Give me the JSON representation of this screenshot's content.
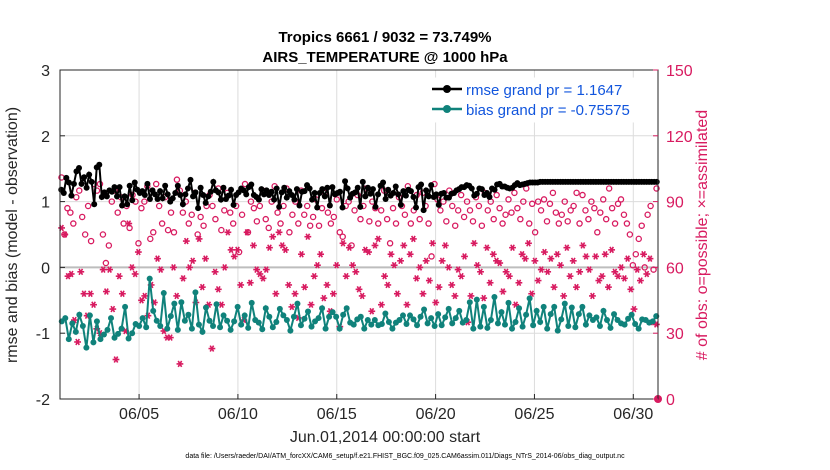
{
  "chart_data": {
    "type": "line",
    "title": "Tropics 6661 / 9032 = 73.749%",
    "subtitle": "AIRS_TEMPERATURE @ 1000 hPa",
    "xlabel": "Jun.01,2014 00:00:00 start",
    "ylabel_left": "rmse and bias (model - observation)",
    "ylabel_right": "# of obs: o=possible; ×=assimilated",
    "ylim_left": [
      -2,
      3
    ],
    "ylim_right": [
      0,
      150
    ],
    "xlim_days": [
      1.0,
      31.25
    ],
    "yticks_left": [
      "-2",
      "-1",
      "0",
      "1",
      "2",
      "3"
    ],
    "yticks_right": [
      "0",
      "30",
      "60",
      "90",
      "120",
      "150"
    ],
    "xticks": [
      {
        "day": 5,
        "label": "06/05"
      },
      {
        "day": 10,
        "label": "06/10"
      },
      {
        "day": 15,
        "label": "06/15"
      },
      {
        "day": 20,
        "label": "06/20"
      },
      {
        "day": 25,
        "label": "06/25"
      },
      {
        "day": 30,
        "label": "06/30"
      }
    ],
    "grid": true,
    "legend_position": "top-right",
    "series": [
      {
        "name": "rmse grand pr = 1.1647",
        "axis": "left",
        "color": "#000000",
        "values": [
          1.18,
          1.13,
          1.36,
          1.29,
          1.09,
          1.27,
          1.46,
          1.51,
          1.27,
          1.37,
          1.21,
          1.41,
          1.3,
          0.96,
          1.52,
          1.56,
          1.07,
          1.14,
          1.08,
          1.17,
          1.15,
          1.22,
          1.08,
          1.22,
          0.94,
          1.08,
          0.96,
          1.24,
          1.02,
          1.29,
          1.18,
          1.13,
          1.16,
          1.1,
          1.27,
          1.04,
          1.17,
          1.11,
          1.04,
          1.16,
          1.05,
          1.24,
          1.11,
          1.0,
          1.05,
          1.13,
          1.24,
          1.1,
          0.96,
          1.11,
          1.2,
          1.33,
          1.08,
          1.14,
          0.9,
          1.21,
          1.1,
          0.98,
          1.08,
          1.15,
          1.3,
          1.17,
          1.14,
          1.03,
          1.21,
          1.04,
          1.09,
          1.18,
          0.95,
          1.1,
          1.14,
          1.2,
          1.17,
          1.11,
          1.22,
          1.26,
          1.1,
          1.07,
          1.03,
          1.19,
          1.11,
          1.17,
          1.1,
          1.15,
          1.03,
          1.2,
          0.92,
          1.14,
          1.21,
          1.06,
          1.16,
          1.1,
          1.03,
          1.19,
          0.94,
          1.15,
          1.16,
          1.25,
          1.2,
          1.03,
          1.13,
          0.91,
          1.13,
          1.19,
          1.08,
          1.21,
          0.94,
          1.22,
          1.11,
          1.13,
          1.15,
          0.91,
          1.31,
          1.2,
          1.06,
          1.12,
          1.14,
          1.21,
          0.92,
          1.3,
          1.08,
          1.21,
          1.12,
          1.19,
          0.92,
          1.11,
          1.24,
          1.29,
          1.04,
          1.18,
          1.09,
          1.13,
          1.23,
          1.11,
          0.95,
          1.16,
          1.09,
          1.18,
          1.16,
          1.07,
          0.91,
          1.22,
          1.26,
          0.87,
          1.17,
          1.08,
          1.25,
          1.07,
          1.11,
          0.95,
          1.12,
          1.13,
          1.06,
          1.06,
          1.12,
          1.13,
          1.17,
          1.19,
          1.22,
          1.22,
          1.25,
          1.24,
          1.2,
          1.09,
          1.12,
          1.2,
          1.19,
          1.1,
          1.13,
          1.07,
          1.2,
          1.18,
          1.26,
          1.27,
          1.23,
          1.23,
          1.21,
          1.2,
          1.21,
          1.25,
          1.28,
          1.25,
          1.26,
          1.27,
          1.28,
          1.29,
          1.29,
          1.29,
          1.29,
          1.3,
          1.3,
          1.3,
          1.3,
          1.3,
          1.3,
          1.3,
          1.3,
          1.3,
          1.3,
          1.3,
          1.3,
          1.3,
          1.3,
          1.3,
          1.3,
          1.3,
          1.3,
          1.3,
          1.3,
          1.3,
          1.3,
          1.3,
          1.3,
          1.3,
          1.3,
          1.3,
          1.3,
          1.3,
          1.3,
          1.3,
          1.3,
          1.3,
          1.3,
          1.3,
          1.3,
          1.3,
          1.3,
          1.3,
          1.3,
          1.3,
          1.3,
          1.3,
          1.3,
          1.3,
          1.3,
          1.3
        ]
      },
      {
        "name": "bias grand pr = -0.75575",
        "axis": "left",
        "color": "#10827b",
        "values": [
          -0.82,
          -0.77,
          -1.09,
          -0.85,
          -0.98,
          -0.72,
          -0.89,
          -1.22,
          -0.73,
          -1.14,
          -0.82,
          -1.09,
          -1.02,
          -0.95,
          -0.77,
          -1.07,
          -1.01,
          -0.93,
          -0.6,
          -1.08,
          -1.0,
          -0.86,
          -0.89,
          -0.77,
          -0.91,
          -0.17,
          -0.66,
          -0.81,
          -0.89,
          -0.39,
          -0.93,
          -0.74,
          -0.55,
          -0.95,
          -0.53,
          -0.81,
          -0.72,
          -0.93,
          -0.38,
          -0.87,
          -0.98,
          -0.61,
          -0.81,
          -0.89,
          -0.56,
          -0.91,
          -0.73,
          -0.81,
          -0.95,
          -0.82,
          -0.6,
          -0.87,
          -0.73,
          -0.92,
          -0.54,
          -0.8,
          -0.84,
          -0.94,
          -0.62,
          -0.75,
          -0.91,
          -0.83,
          -0.63,
          -0.73,
          -0.8,
          -0.96,
          -0.75,
          -0.55,
          -0.88,
          -0.78,
          -0.67,
          -0.9,
          -0.82,
          -0.77,
          -0.62,
          -0.93,
          -0.75,
          -0.68,
          -0.75,
          -0.93,
          -0.72,
          -0.62,
          -0.84,
          -0.87,
          -0.79,
          -0.75,
          -0.93,
          -0.8,
          -0.87,
          -0.8,
          -0.88,
          -0.86,
          -0.7,
          -0.83,
          -0.93,
          -0.84,
          -0.8,
          -0.73,
          -0.86,
          -0.73,
          -0.79,
          -0.88,
          -0.75,
          -0.64,
          -0.85,
          -0.77,
          -0.89,
          -0.71,
          -0.88,
          -0.76,
          -0.63,
          -0.85,
          -0.77,
          -0.66,
          -0.84,
          -0.8,
          -0.53,
          -0.93,
          -0.49,
          -0.9,
          -0.6,
          -0.92,
          -0.8,
          -0.45,
          -0.85,
          -0.68,
          -0.87,
          -0.54,
          -0.93,
          -0.83,
          -0.62,
          -0.9,
          -0.72,
          -0.47,
          -0.88,
          -0.66,
          -0.83,
          -0.6,
          -0.93,
          -0.71,
          -0.6,
          -0.96,
          -0.79,
          -0.55,
          -0.89,
          -0.61,
          -0.91,
          -0.71,
          -0.6,
          -0.87,
          -0.73,
          -0.8,
          -0.76,
          -0.89,
          -0.66,
          -0.8,
          -0.92,
          -0.71,
          -0.8,
          -0.85,
          -0.87,
          -0.78,
          -0.72,
          -0.86,
          -0.93,
          -0.79,
          -0.8,
          -0.84,
          -0.82,
          -0.74
        ]
      },
      {
        "name": "possible obs (o)",
        "axis": "right",
        "color": "#d81b60",
        "marker": "circle",
        "values": [
          101,
          75,
          87,
          85,
          80,
          92,
          95,
          83,
          75,
          88,
          72,
          98,
          95,
          98,
          75,
          62,
          70,
          90,
          95,
          85,
          92,
          80,
          88,
          78,
          93,
          90,
          71,
          87,
          90,
          97,
          73,
          76,
          98,
          88,
          80,
          92,
          77,
          85,
          76,
          100,
          95,
          85,
          90,
          80,
          84,
          94,
          75,
          83,
          79,
          88,
          93,
          88,
          82,
          96,
          77,
          86,
          94,
          85,
          80,
          88,
          67,
          84,
          98,
          76,
          90,
          87,
          81,
          88,
          95,
          82,
          78,
          90,
          97,
          85,
          80,
          88,
          96,
          76,
          84,
          90,
          80,
          95,
          84,
          88,
          79,
          83,
          91,
          79,
          87,
          94,
          85,
          80,
          83,
          91,
          76,
          74,
          88,
          90,
          70,
          86,
          93,
          82,
          88,
          96,
          81,
          90,
          87,
          80,
          86,
          95,
          82,
          71,
          87,
          80,
          92,
          88,
          84,
          97,
          80,
          86,
          93,
          82,
          94,
          88,
          80,
          65,
          98,
          91,
          86,
          90,
          81,
          95,
          88,
          79,
          86,
          93,
          83,
          90,
          86,
          81,
          92,
          88,
          79,
          94,
          86,
          90,
          82,
          93,
          87,
          80,
          84,
          91,
          85,
          94,
          87,
          82,
          90,
          96,
          80,
          89,
          76,
          90,
          86,
          91,
          81,
          89,
          94,
          85,
          80,
          84,
          90,
          81,
          86,
          88,
          94,
          80,
          93,
          86,
          82,
          90,
          87,
          76,
          85,
          91,
          82,
          96,
          87,
          80,
          89,
          91,
          84,
          80,
          75,
          61,
          66,
          73,
          79,
          60,
          84,
          88,
          59,
          96
        ]
      },
      {
        "name": "assimilated obs (×)",
        "axis": "right",
        "color": "#d81b60",
        "marker": "star",
        "values": [
          78,
          75,
          56,
          57,
          36,
          26,
          58,
          48,
          38,
          48,
          43,
          32,
          30,
          59,
          49,
          59,
          41,
          18,
          56,
          48,
          31,
          80,
          60,
          57,
          67,
          45,
          47,
          38,
          52,
          44,
          64,
          59,
          31,
          28,
          28,
          60,
          47,
          16,
          55,
          72,
          60,
          63,
          44,
          73,
          51,
          64,
          43,
          23,
          58,
          50,
          43,
          60,
          76,
          68,
          65,
          68,
          52,
          36,
          76,
          53,
          70,
          59,
          57,
          55,
          59,
          69,
          74,
          48,
          76,
          70,
          68,
          52,
          42,
          48,
          37,
          66,
          51,
          74,
          43,
          56,
          61,
          66,
          46,
          52,
          40,
          48,
          61,
          33,
          71,
          56,
          69,
          61,
          58,
          50,
          47,
          68,
          67,
          40,
          70,
          73,
          43,
          56,
          52,
          66,
          61,
          48,
          63,
          70,
          43,
          66,
          73,
          55,
          60,
          48,
          63,
          54,
          71,
          44,
          51,
          63,
          70,
          60,
          52,
          47,
          59,
          56,
          65,
          35,
          47,
          71,
          61,
          58,
          46,
          69,
          53,
          66,
          63,
          62,
          49,
          58,
          56,
          69,
          43,
          53,
          66,
          64,
          71,
          48,
          63,
          54,
          59,
          67,
          58,
          64,
          51,
          66,
          61,
          47,
          69,
          56,
          63,
          51,
          58,
          70,
          65,
          59,
          47,
          65,
          54,
          56,
          66,
          51,
          68,
          58,
          56,
          60,
          55,
          64,
          50,
          41,
          59,
          54,
          66,
          57,
          64,
          35,
          34
        ]
      }
    ],
    "footnote": "data file: /Users/raeder/DAI/ATM_forcXX/CAM6_setup/f.e21.FHIST_BGC.f09_025.CAM6assim.011/Diags_NTrS_2014-06/obs_diag_output.nc"
  },
  "colors": {
    "rmse": "#000000",
    "bias": "#10827b",
    "obs": "#d81b60",
    "legend_text": "#1155dd",
    "zero_line": "#bdbdbd"
  }
}
